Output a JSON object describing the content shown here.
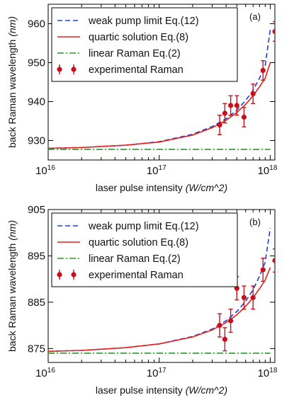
{
  "chart_data": [
    {
      "type": "line",
      "panel_label": "(a)",
      "xlabel": "laser pulse intensity",
      "xlabel_units": "(W/cm^2)",
      "ylabel": "back Raman wavelength",
      "ylabel_units": "(nm)",
      "x_scale": "log",
      "xlim": [
        1e+16,
        1.1e+18
      ],
      "ylim": [
        925,
        965
      ],
      "x_ticks": [
        1e+16,
        1e+17,
        1e+18
      ],
      "x_tick_labels": [
        {
          "base": "10",
          "exp": "16"
        },
        {
          "base": "10",
          "exp": "17"
        },
        {
          "base": "10",
          "exp": "18"
        }
      ],
      "y_ticks": [
        930,
        940,
        950,
        960
      ],
      "y_tick_labels": [
        "930",
        "940",
        "950",
        "960"
      ],
      "legend_position": "top-left",
      "series": [
        {
          "name": "weak pump limit Eq.(12)",
          "style": "dashed",
          "color": "#1f3fd6",
          "x": [
            1e+16,
            2e+16,
            5e+16,
            1e+17,
            2e+17,
            3e+17,
            4e+17,
            5e+17,
            6e+17,
            7e+17,
            8e+17,
            9e+17,
            1e+18
          ],
          "y": [
            928.0,
            928.2,
            928.8,
            929.7,
            931.6,
            933.6,
            935.6,
            937.8,
            940.3,
            942.9,
            946.0,
            949.3,
            958.5
          ]
        },
        {
          "name": "quartic solution Eq.(8)",
          "style": "solid",
          "color": "#e8211b",
          "x": [
            1e+16,
            2e+16,
            5e+16,
            1e+17,
            2e+17,
            3e+17,
            4e+17,
            5e+17,
            6e+17,
            7e+17,
            8e+17,
            9e+17,
            1e+18
          ],
          "y": [
            928.0,
            928.2,
            928.8,
            929.6,
            931.4,
            933.3,
            935.2,
            937.2,
            939.3,
            941.5,
            943.8,
            946.0,
            950.0
          ]
        },
        {
          "name": "linear Raman Eq.(2)",
          "style": "dashdot",
          "color": "#2a9a2a",
          "x": [
            1e+16,
            1e+18
          ],
          "y": [
            927.7,
            927.7
          ]
        },
        {
          "name": "experimental Raman",
          "style": "markers",
          "color": "#c8101c",
          "x": [
            3.5e+17,
            3.9e+17,
            4.4e+17,
            5e+17,
            5.8e+17,
            7e+17,
            8.6e+17,
            1.1e+18
          ],
          "y": [
            934.0,
            937.0,
            939.0,
            939.0,
            936.0,
            942.0,
            948.0,
            958.0
          ],
          "yerr": [
            2.5,
            2.5,
            2.5,
            2.5,
            2.5,
            2.5,
            2.5,
            2.5
          ]
        }
      ]
    },
    {
      "type": "line",
      "panel_label": "(b)",
      "xlabel": "laser pulse intensity",
      "xlabel_units": "(W/cm^2)",
      "ylabel": "back Raman wavelength",
      "ylabel_units": "(nm)",
      "x_scale": "log",
      "xlim": [
        1e+16,
        1.1e+18
      ],
      "ylim": [
        872,
        905
      ],
      "x_ticks": [
        1e+16,
        1e+17,
        1e+18
      ],
      "x_tick_labels": [
        {
          "base": "10",
          "exp": "16"
        },
        {
          "base": "10",
          "exp": "17"
        },
        {
          "base": "10",
          "exp": "18"
        }
      ],
      "y_ticks": [
        875,
        885,
        895,
        905
      ],
      "y_tick_labels": [
        "875",
        "885",
        "895",
        "905"
      ],
      "legend_position": "top-left",
      "series": [
        {
          "name": "weak pump limit Eq.(12)",
          "style": "dashed",
          "color": "#1f3fd6",
          "x": [
            1e+16,
            2e+16,
            5e+16,
            1e+17,
            2e+17,
            3e+17,
            4e+17,
            5e+17,
            6e+17,
            7e+17,
            8e+17,
            9e+17,
            1e+18
          ],
          "y": [
            874.4,
            874.6,
            875.2,
            876.0,
            877.6,
            879.2,
            881.0,
            883.0,
            885.2,
            887.7,
            890.6,
            893.6,
            901.0
          ]
        },
        {
          "name": "quartic solution Eq.(8)",
          "style": "solid",
          "color": "#e8211b",
          "x": [
            1e+16,
            2e+16,
            5e+16,
            1e+17,
            2e+17,
            3e+17,
            4e+17,
            5e+17,
            6e+17,
            7e+17,
            8e+17,
            9e+17,
            1e+18
          ],
          "y": [
            874.4,
            874.6,
            875.2,
            876.0,
            877.5,
            879.0,
            880.6,
            882.3,
            884.1,
            886.0,
            887.9,
            889.8,
            892.5
          ]
        },
        {
          "name": "linear Raman Eq.(2)",
          "style": "dashdot",
          "color": "#2a9a2a",
          "x": [
            1e+16,
            1e+18
          ],
          "y": [
            874.0,
            874.0
          ]
        },
        {
          "name": "experimental Raman",
          "style": "markers",
          "color": "#c8101c",
          "x": [
            3.5e+17,
            3.9e+17,
            4.4e+17,
            5e+17,
            5.8e+17,
            7e+17,
            8.6e+17,
            1.1e+18
          ],
          "y": [
            880.0,
            877.0,
            881.0,
            888.0,
            886.0,
            886.0,
            892.0,
            894.0
          ],
          "yerr": [
            2.5,
            2.5,
            2.5,
            2.5,
            2.5,
            2.5,
            2.5,
            2.5
          ]
        }
      ]
    }
  ]
}
